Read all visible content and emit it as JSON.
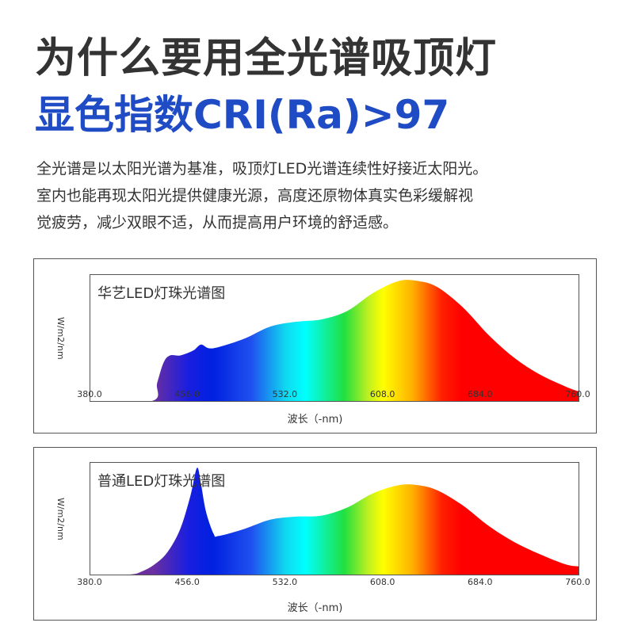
{
  "header": {
    "title": "为什么要用全光谱吸顶灯",
    "subtitle": "显色指数CRI(Ra)>97",
    "subtitle_color": "#1f4bc4",
    "description_lines": [
      "全光谱是以太阳光谱为基准，吸顶灯LED光谱连续性好接近太阳光。",
      "室内也能再现太阳光提供健康光源，高度还原物体真实色彩缓解视",
      "觉疲劳，减少双眼不适，从而提高用户环境的舒适感。"
    ]
  },
  "chart_data": [
    {
      "type": "area",
      "title": "华艺LED灯珠光谱图",
      "xlabel": "波长（-nm)",
      "ylabel": "W/m2/nm",
      "xlim": [
        380,
        760
      ],
      "x_ticks": [
        "380.0",
        "456.0",
        "532.0",
        "608.0",
        "684.0",
        "760.0"
      ],
      "grid": false,
      "fill": "visible-spectrum gradient",
      "x": [
        380,
        428,
        432,
        437,
        442,
        450,
        460,
        466,
        472,
        480,
        500,
        520,
        540,
        560,
        580,
        600,
        620,
        635,
        650,
        670,
        690,
        710,
        730,
        750,
        760
      ],
      "values": [
        0,
        0,
        0.15,
        0.32,
        0.38,
        0.38,
        0.42,
        0.47,
        0.44,
        0.45,
        0.52,
        0.62,
        0.66,
        0.68,
        0.75,
        0.9,
        1.0,
        1.0,
        0.95,
        0.78,
        0.55,
        0.36,
        0.22,
        0.12,
        0.08
      ],
      "ylim": [
        0,
        1.05
      ]
    },
    {
      "type": "area",
      "title": "普通LED灯珠光谱图",
      "xlabel": "波长（-nm)",
      "ylabel": "W/m2/nm",
      "xlim": [
        380,
        760
      ],
      "x_ticks": [
        "380.0",
        "456.0",
        "532.0",
        "608.0",
        "684.0",
        "760.0"
      ],
      "grid": false,
      "fill": "visible-spectrum gradient",
      "x": [
        380,
        410,
        420,
        430,
        440,
        450,
        458,
        463,
        466,
        470,
        476,
        480,
        500,
        520,
        540,
        560,
        580,
        600,
        620,
        635,
        650,
        670,
        690,
        710,
        730,
        750,
        760
      ],
      "values": [
        0,
        0,
        0.03,
        0.1,
        0.22,
        0.45,
        0.78,
        1.05,
        0.9,
        0.62,
        0.4,
        0.38,
        0.45,
        0.54,
        0.57,
        0.58,
        0.66,
        0.8,
        0.88,
        0.88,
        0.83,
        0.68,
        0.48,
        0.32,
        0.2,
        0.1,
        0.08
      ],
      "ylim": [
        0,
        1.1
      ]
    }
  ]
}
